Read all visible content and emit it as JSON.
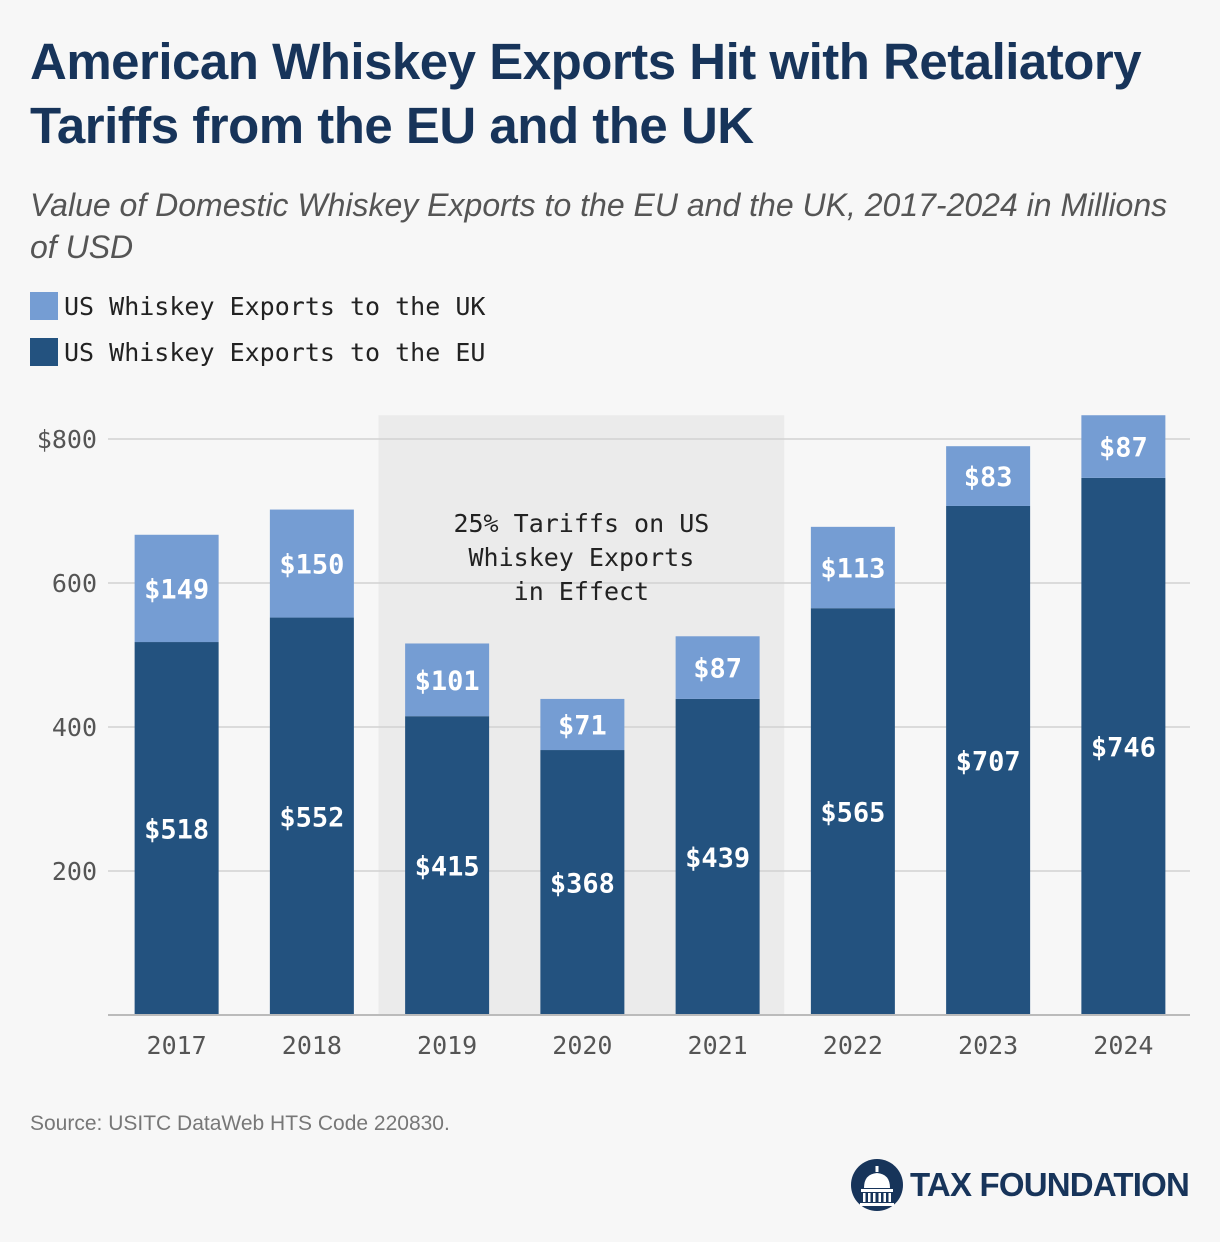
{
  "title": "American Whiskey Exports Hit with Retaliatory Tariffs from the EU and the UK",
  "subtitle": "Value of Domestic Whiskey Exports to the EU and the UK, 2017-2024 in Millions of USD",
  "source": "Source: USITC DataWeb HTS Code 220830.",
  "brand": "TAX FOUNDATION",
  "colors": {
    "uk": "#759dd3",
    "eu": "#23527f",
    "title": "#17345a",
    "shade": "#ebebeb"
  },
  "chart_data": {
    "type": "bar",
    "stacked": true,
    "categories": [
      "2017",
      "2018",
      "2019",
      "2020",
      "2021",
      "2022",
      "2023",
      "2024"
    ],
    "series": [
      {
        "name": "US Whiskey Exports to the EU",
        "values": [
          518,
          552,
          415,
          368,
          439,
          565,
          707,
          746
        ],
        "labels": [
          "$518",
          "$552",
          "$415",
          "$368",
          "$439",
          "$565",
          "$707",
          "$746"
        ],
        "color": "#23527f"
      },
      {
        "name": "US Whiskey Exports to the UK",
        "values": [
          149,
          150,
          101,
          71,
          87,
          113,
          83,
          87
        ],
        "labels": [
          "$149",
          "$150",
          "$101",
          "$71",
          "$87",
          "$113",
          "$83",
          "$87"
        ],
        "color": "#759dd3"
      }
    ],
    "legend": [
      "US Whiskey Exports to the UK",
      "US Whiskey Exports to the EU"
    ],
    "yticks": [
      200,
      400,
      600,
      800
    ],
    "ytick_labels": [
      "200",
      "400",
      "600",
      "$800"
    ],
    "ylim": [
      0,
      833
    ],
    "annotation": {
      "lines": [
        "25% Tariffs on US",
        "Whiskey Exports",
        "in Effect"
      ],
      "span": [
        "2019",
        "2021"
      ]
    }
  }
}
